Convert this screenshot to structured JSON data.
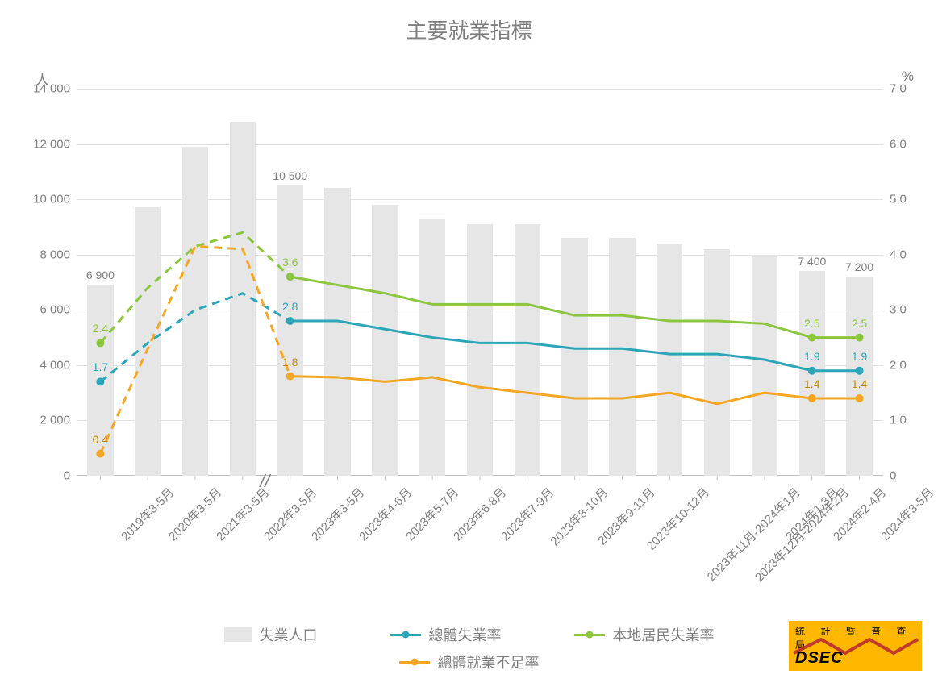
{
  "title": "主要就業指標",
  "y_left": {
    "label": "人",
    "min": 0,
    "max": 14000,
    "step": 2000
  },
  "y_right": {
    "label": "%",
    "min": 0,
    "max": 7.0,
    "step": 1.0
  },
  "y_left_ticks": [
    "0",
    "2 000",
    "4 000",
    "6 000",
    "8 000",
    "10 000",
    "12 000",
    "14 000"
  ],
  "y_right_ticks": [
    "0",
    "1.0",
    "2.0",
    "3.0",
    "4.0",
    "5.0",
    "6.0",
    "7.0"
  ],
  "categories": [
    "2019年3-5月",
    "2020年3-5月",
    "2021年3-5月",
    "2022年3-5月",
    "2023年3-5月",
    "2023年4-6月",
    "2023年5-7月",
    "2023年6-8月",
    "2023年7-9月",
    "2023年8-10月",
    "2023年9-11月",
    "2023年10-12月",
    "2023年11月-2024年1月",
    "2023年12月-2024年2月",
    "2024年1-3月",
    "2024年2-4月",
    "2024年3-5月"
  ],
  "bars": {
    "name": "失業人口",
    "color": "#e6e6e6",
    "values": [
      6900,
      9700,
      11900,
      12800,
      10500,
      10400,
      9800,
      9300,
      9100,
      9100,
      8600,
      8600,
      8400,
      8200,
      8000,
      7400,
      7200
    ],
    "width_ratio": 0.55
  },
  "bar_labels": [
    {
      "i": 0,
      "text": "6 900"
    },
    {
      "i": 4,
      "text": "10 500"
    },
    {
      "i": 15,
      "text": "7 400"
    },
    {
      "i": 16,
      "text": "7 200"
    }
  ],
  "lines": [
    {
      "key": "total_unemp",
      "name": "總體失業率",
      "color": "#2ca5b8",
      "marker": true,
      "values": [
        1.7,
        2.4,
        3.0,
        3.3,
        2.8,
        2.8,
        2.65,
        2.5,
        2.4,
        2.4,
        2.3,
        2.3,
        2.2,
        2.2,
        2.1,
        1.9,
        1.9
      ],
      "dash_until": 4
    },
    {
      "key": "local_unemp",
      "name": "本地居民失業率",
      "color": "#8cc63f",
      "marker": true,
      "values": [
        2.4,
        3.4,
        4.15,
        4.4,
        3.6,
        3.45,
        3.3,
        3.1,
        3.1,
        3.1,
        2.9,
        2.9,
        2.8,
        2.8,
        2.75,
        2.5,
        2.5
      ],
      "dash_until": 4
    },
    {
      "key": "underemp",
      "name": "總體就業不足率",
      "color": "#f5a623",
      "marker": true,
      "values": [
        0.4,
        2.3,
        4.15,
        4.1,
        1.8,
        1.78,
        1.7,
        1.78,
        1.6,
        1.5,
        1.4,
        1.4,
        1.5,
        1.3,
        1.5,
        1.4,
        1.4
      ],
      "dash_until": 4
    }
  ],
  "line_point_labels": [
    {
      "series": "total_unemp",
      "i": 0,
      "text": "1.7",
      "color": "#2ca5b8",
      "dy": -10
    },
    {
      "series": "total_unemp",
      "i": 4,
      "text": "2.8",
      "color": "#2ca5b8",
      "dy": -10
    },
    {
      "series": "total_unemp",
      "i": 15,
      "text": "1.9",
      "color": "#2ca5b8",
      "dy": -10
    },
    {
      "series": "total_unemp",
      "i": 16,
      "text": "1.9",
      "color": "#2ca5b8",
      "dy": -10
    },
    {
      "series": "local_unemp",
      "i": 0,
      "text": "2.4",
      "color": "#8cc63f",
      "dy": -10
    },
    {
      "series": "local_unemp",
      "i": 4,
      "text": "3.6",
      "color": "#8cc63f",
      "dy": -10
    },
    {
      "series": "local_unemp",
      "i": 15,
      "text": "2.5",
      "color": "#8cc63f",
      "dy": -10
    },
    {
      "series": "local_unemp",
      "i": 16,
      "text": "2.5",
      "color": "#8cc63f",
      "dy": -10
    },
    {
      "series": "underemp",
      "i": 0,
      "text": "0.4",
      "color": "#c28a00",
      "dy": -10
    },
    {
      "series": "underemp",
      "i": 4,
      "text": "1.8",
      "color": "#c28a00",
      "dy": -10
    },
    {
      "series": "underemp",
      "i": 15,
      "text": "1.4",
      "color": "#c28a00",
      "dy": -10
    },
    {
      "series": "underemp",
      "i": 16,
      "text": "1.4",
      "color": "#c28a00",
      "dy": -10
    }
  ],
  "axis_break_after_index": 3,
  "legend": [
    {
      "type": "swatch",
      "color": "#e6e6e6",
      "label": "失業人口"
    },
    {
      "type": "line",
      "color": "#2ca5b8",
      "label": "總體失業率"
    },
    {
      "type": "line",
      "color": "#8cc63f",
      "label": "本地居民失業率"
    },
    {
      "type": "line",
      "color": "#f5a623",
      "label": "總體就業不足率"
    }
  ],
  "logo": {
    "cn": "統 計 暨 普 查 局",
    "en": "DSEC"
  },
  "grid_color": "#e0e0e0",
  "background_color": "#ffffff",
  "line_width": 3,
  "marker_radius": 5
}
